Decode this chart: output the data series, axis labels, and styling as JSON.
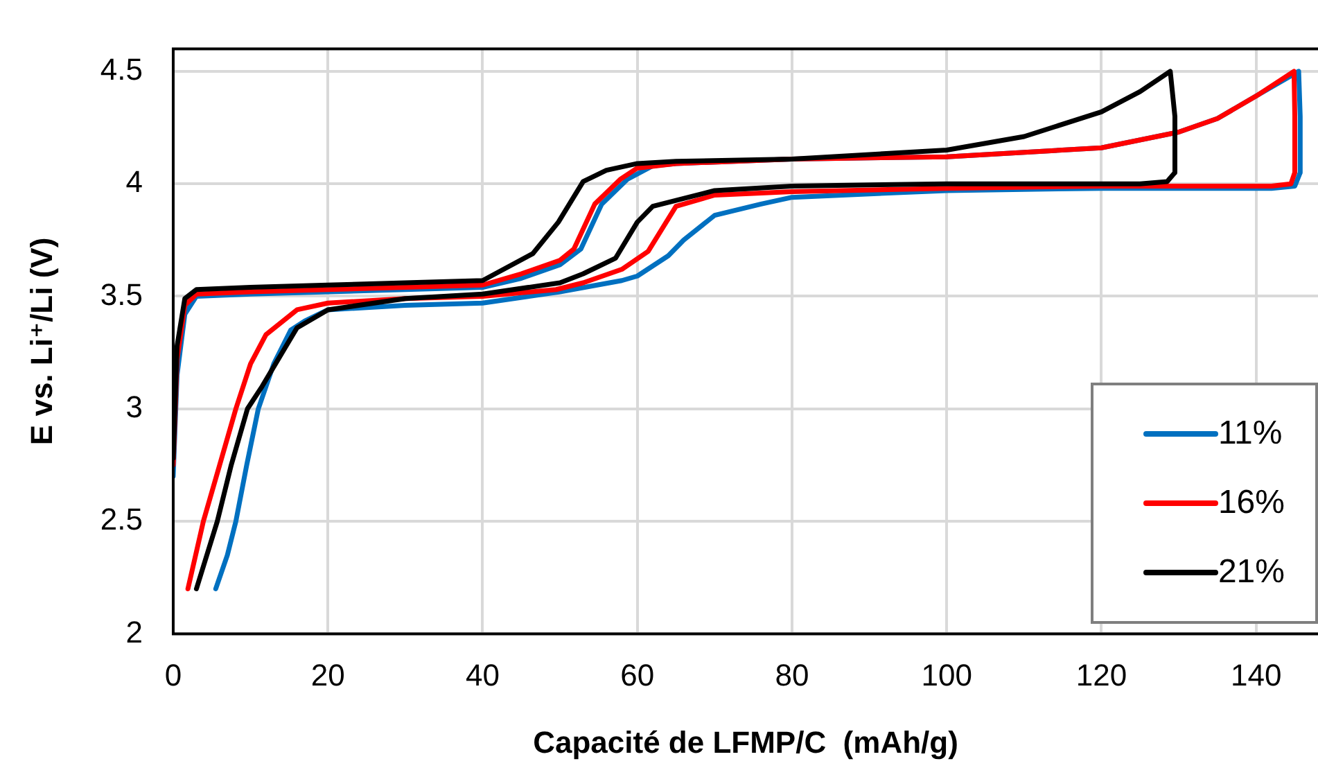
{
  "chart_data": {
    "type": "line",
    "xlabel": "Capacité de LFMP/C  (mAh/g)",
    "ylabel": "E vs. Li⁺/Li (V)",
    "xlim": [
      0,
      148
    ],
    "ylim": [
      2,
      4.6
    ],
    "xticks": [
      0,
      20,
      40,
      60,
      80,
      100,
      120,
      140
    ],
    "yticks": [
      2,
      2.5,
      3,
      3.5,
      4,
      4.5
    ],
    "grid": true,
    "legend": "bottom right",
    "marker": "none",
    "line_style": "solid",
    "series": [
      {
        "name": "11%",
        "color": "#0070c0",
        "x": [
          0,
          0.5,
          1.5,
          3,
          10,
          20,
          30,
          40,
          45,
          50,
          52.7,
          55.4,
          58.7,
          62,
          65,
          80,
          100,
          120,
          130,
          135,
          140,
          145.5,
          145.7,
          145.7,
          145,
          142,
          120,
          100,
          80,
          76,
          70,
          66,
          64,
          60,
          58,
          50,
          40,
          30,
          20,
          19.4,
          17,
          15.2,
          13,
          11,
          9.5,
          8.1,
          7,
          5.5
        ],
        "values": [
          2.7,
          3.15,
          3.42,
          3.5,
          3.51,
          3.52,
          3.53,
          3.54,
          3.58,
          3.64,
          3.71,
          3.91,
          4.02,
          4.08,
          4.09,
          4.11,
          4.12,
          4.16,
          4.23,
          4.29,
          4.39,
          4.5,
          4.3,
          4.05,
          3.99,
          3.98,
          3.98,
          3.97,
          3.94,
          3.91,
          3.86,
          3.75,
          3.68,
          3.59,
          3.57,
          3.52,
          3.47,
          3.46,
          3.44,
          3.43,
          3.39,
          3.35,
          3.2,
          3.0,
          2.75,
          2.5,
          2.35,
          2.2
        ]
      },
      {
        "name": "16%",
        "color": "#ff0000",
        "x": [
          0,
          0.5,
          1.5,
          3,
          10,
          20,
          30,
          40,
          45,
          50,
          51.8,
          54.5,
          57.8,
          60,
          65,
          80,
          100,
          120,
          130,
          135,
          140,
          144.9,
          145,
          145,
          144.5,
          142,
          120,
          100,
          80,
          70,
          65,
          61.4,
          58,
          53,
          49.5,
          40,
          30,
          20,
          16,
          12,
          10,
          8.1,
          6,
          3.9,
          1.9
        ],
        "values": [
          2.75,
          3.22,
          3.46,
          3.51,
          3.52,
          3.53,
          3.54,
          3.55,
          3.6,
          3.66,
          3.71,
          3.91,
          4.02,
          4.07,
          4.09,
          4.11,
          4.12,
          4.16,
          4.23,
          4.29,
          4.39,
          4.5,
          4.3,
          4.05,
          4.0,
          3.99,
          3.99,
          3.98,
          3.965,
          3.95,
          3.9,
          3.7,
          3.62,
          3.56,
          3.53,
          3.5,
          3.49,
          3.47,
          3.44,
          3.33,
          3.2,
          3.0,
          2.75,
          2.5,
          2.2
        ]
      },
      {
        "name": "21%",
        "color": "#000000",
        "x": [
          0,
          0.5,
          1.5,
          3,
          10,
          20,
          30,
          40,
          46.5,
          49.8,
          53,
          56,
          60,
          65,
          80,
          90,
          100,
          110,
          120,
          125,
          128.9,
          129.5,
          129.5,
          128.5,
          125,
          100,
          80,
          70,
          62,
          60,
          57.2,
          53,
          50,
          40,
          30,
          20,
          16,
          13.4,
          11.5,
          9.6,
          7.5,
          5.7,
          3
        ],
        "values": [
          2.78,
          3.28,
          3.49,
          3.53,
          3.54,
          3.55,
          3.56,
          3.57,
          3.69,
          3.83,
          4.01,
          4.06,
          4.09,
          4.1,
          4.11,
          4.13,
          4.15,
          4.21,
          4.32,
          4.41,
          4.5,
          4.3,
          4.05,
          4.01,
          4.0,
          4.0,
          3.99,
          3.97,
          3.9,
          3.83,
          3.67,
          3.6,
          3.56,
          3.51,
          3.49,
          3.44,
          3.36,
          3.21,
          3.1,
          3.0,
          2.75,
          2.5,
          2.2
        ]
      }
    ]
  }
}
